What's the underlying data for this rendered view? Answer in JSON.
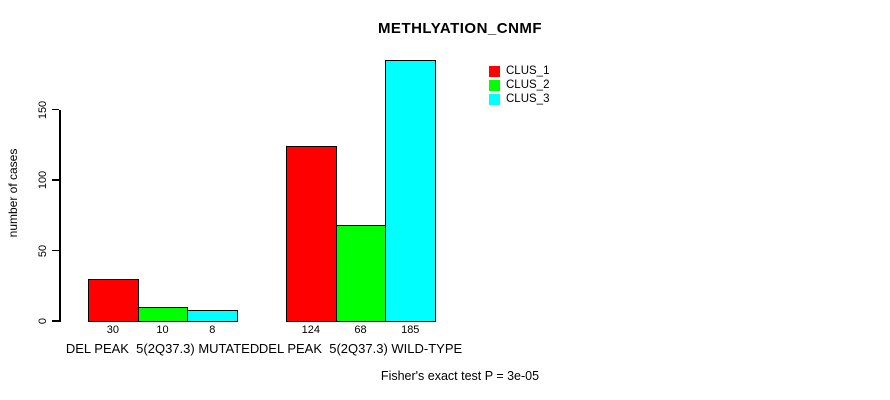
{
  "chart_data": {
    "type": "bar",
    "title": "METHLYATION_CNMF",
    "ylabel": "number of cases",
    "xlabel": "",
    "ylim": [
      0,
      150
    ],
    "yticks": [
      0,
      50,
      100,
      150
    ],
    "grid": false,
    "legend_position": "inside-top-right",
    "categories": [
      "DEL PEAK  5(2Q37.3) MUTATED",
      "DEL PEAK  5(2Q37.3) WILD-TYPE"
    ],
    "series": [
      {
        "name": "CLUS_1",
        "color": "#ff0000",
        "values": [
          30,
          124
        ]
      },
      {
        "name": "CLUS_2",
        "color": "#00ff00",
        "values": [
          10,
          68
        ]
      },
      {
        "name": "CLUS_3",
        "color": "#00ffff",
        "values": [
          8,
          185
        ]
      }
    ],
    "bar_value_labels": [
      [
        30,
        10,
        8
      ],
      [
        124,
        68,
        185
      ]
    ],
    "annotation": "Fisher's exact test P = 3e-05"
  },
  "colors": {
    "background": "#ffffff",
    "axis": "#000000",
    "text": "#000000"
  }
}
